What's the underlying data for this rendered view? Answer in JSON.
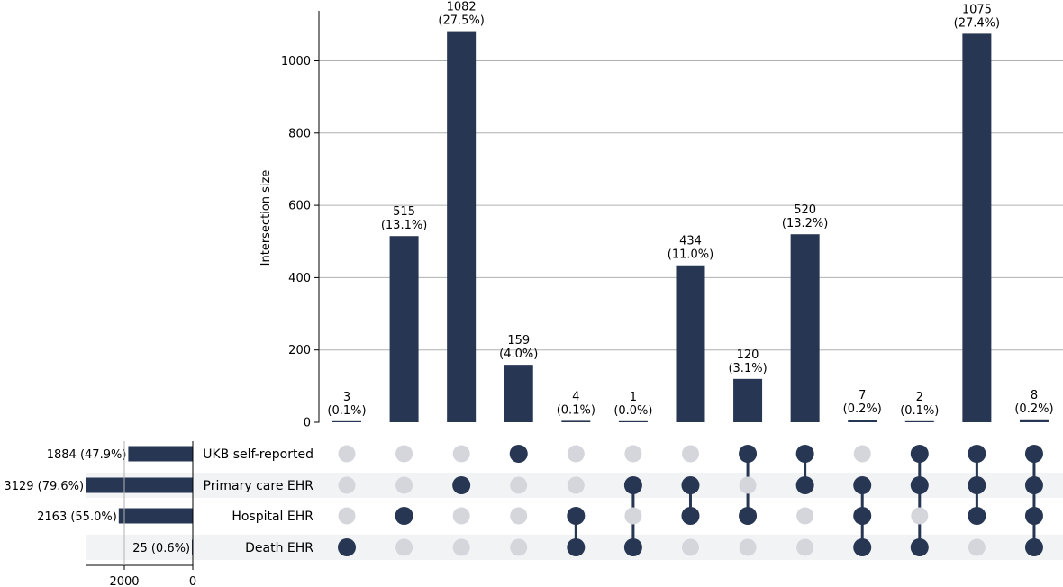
{
  "chart_data": {
    "type": "upset",
    "ylabel": "Intersection size",
    "ylim": [
      0,
      1130
    ],
    "yticks": [
      0,
      200,
      400,
      600,
      800,
      1000
    ],
    "set_size_xticks": [
      2000,
      0
    ],
    "set_size_xlim": [
      3200,
      0
    ],
    "sets": [
      {
        "name": "UKB self-reported",
        "size": 1884,
        "label": "1884 (47.9%)"
      },
      {
        "name": "Primary care EHR",
        "size": 3129,
        "label": "3129 (79.6%)"
      },
      {
        "name": "Hospital EHR",
        "size": 2163,
        "label": "2163 (55.0%)"
      },
      {
        "name": "Death EHR",
        "size": 25,
        "label": "25 (0.6%)"
      }
    ],
    "intersections": [
      {
        "value": 3,
        "count": "3",
        "pct": "(0.1%)",
        "members": [
          false,
          false,
          false,
          true
        ]
      },
      {
        "value": 515,
        "count": "515",
        "pct": "(13.1%)",
        "members": [
          false,
          false,
          true,
          false
        ]
      },
      {
        "value": 1082,
        "count": "1082",
        "pct": "(27.5%)",
        "members": [
          false,
          true,
          false,
          false
        ]
      },
      {
        "value": 159,
        "count": "159",
        "pct": "(4.0%)",
        "members": [
          true,
          false,
          false,
          false
        ]
      },
      {
        "value": 4,
        "count": "4",
        "pct": "(0.1%)",
        "members": [
          false,
          false,
          true,
          true
        ]
      },
      {
        "value": 1,
        "count": "1",
        "pct": "(0.0%)",
        "members": [
          false,
          true,
          false,
          true
        ]
      },
      {
        "value": 434,
        "count": "434",
        "pct": "(11.0%)",
        "members": [
          false,
          true,
          true,
          false
        ]
      },
      {
        "value": 120,
        "count": "120",
        "pct": "(3.1%)",
        "members": [
          true,
          false,
          true,
          false
        ]
      },
      {
        "value": 520,
        "count": "520",
        "pct": "(13.2%)",
        "members": [
          true,
          true,
          false,
          false
        ]
      },
      {
        "value": 7,
        "count": "7",
        "pct": "(0.2%)",
        "members": [
          false,
          true,
          true,
          true
        ]
      },
      {
        "value": 2,
        "count": "2",
        "pct": "(0.1%)",
        "members": [
          true,
          true,
          false,
          true
        ]
      },
      {
        "value": 1075,
        "count": "1075",
        "pct": "(27.4%)",
        "members": [
          true,
          true,
          true,
          false
        ]
      },
      {
        "value": 8,
        "count": "8",
        "pct": "(0.2%)",
        "members": [
          true,
          true,
          true,
          true
        ]
      }
    ],
    "colors": {
      "bar": "#273652",
      "dot_active": "#273652",
      "dot_inactive": "#d4d6dc",
      "grid": "#b0b0b0",
      "stripe": "#f2f3f5"
    }
  }
}
